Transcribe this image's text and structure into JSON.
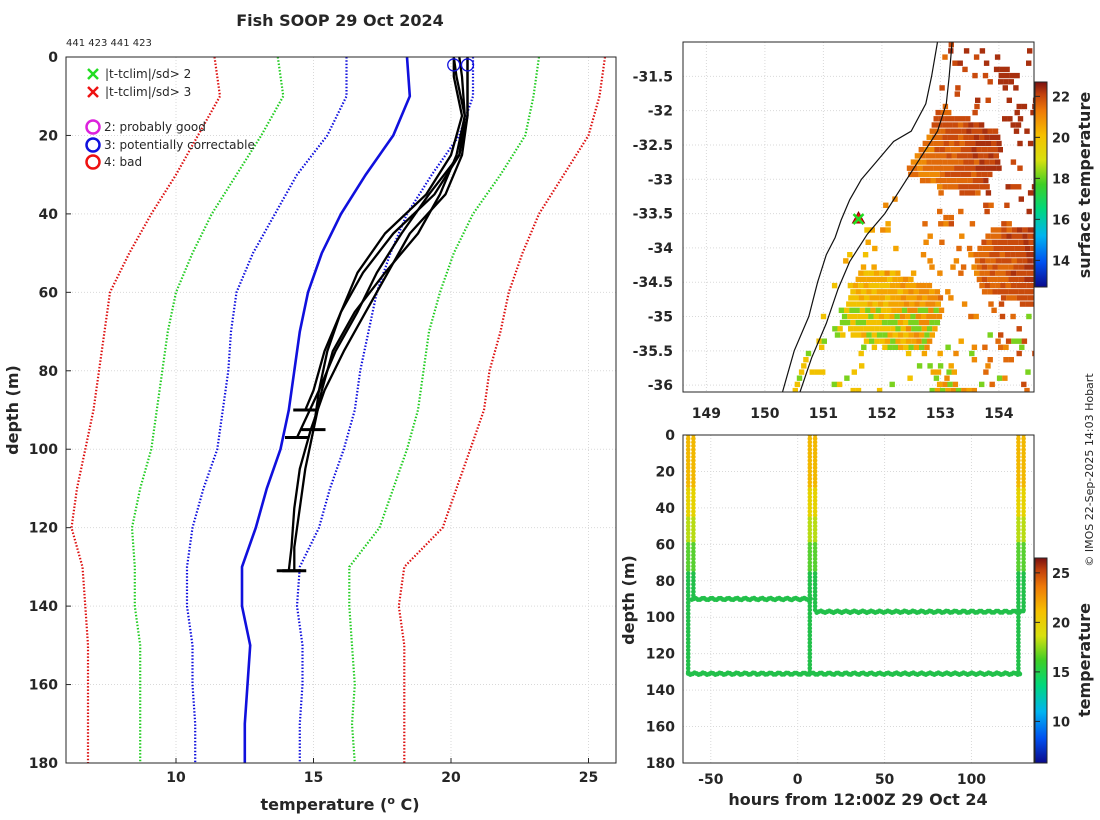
{
  "chart_data": [
    {
      "type": "line",
      "id": "profiles",
      "title": "Fish SOOP 29 Oct 2024",
      "subtitle": "441 423 441 423",
      "xlabel": "temperature (o C)",
      "xlabel_base": "temperature (",
      "xlabel_sup": "o",
      "xlabel_end": " C)",
      "ylabel": "depth (m)",
      "xlim": [
        6,
        26
      ],
      "ylim": [
        0,
        180
      ],
      "xticks": [
        10,
        15,
        20,
        25
      ],
      "yticks": [
        0,
        20,
        40,
        60,
        80,
        100,
        120,
        140,
        160,
        180
      ],
      "legend": [
        {
          "marker": "x",
          "color": "#22dd22",
          "label": "|t-tclim|/sd> 2"
        },
        {
          "marker": "x",
          "color": "#ee1111",
          "label": "|t-tclim|/sd> 3"
        },
        {
          "marker": "o",
          "color": "#dd22dd",
          "label": "2: probably good"
        },
        {
          "marker": "o",
          "color": "#1111dd",
          "label": "3: potentially correctable"
        },
        {
          "marker": "o",
          "color": "#ee1111",
          "label": "4: bad"
        }
      ],
      "climatology": [
        {
          "name": "clim",
          "style": "solid",
          "color": "#1010dd",
          "depth": [
            0,
            10,
            20,
            30,
            40,
            50,
            60,
            70,
            80,
            90,
            100,
            110,
            120,
            130,
            140,
            150,
            160,
            170,
            180
          ],
          "temp": [
            18.4,
            18.5,
            17.9,
            16.9,
            16.0,
            15.3,
            14.8,
            14.5,
            14.3,
            14.1,
            13.8,
            13.3,
            12.9,
            12.4,
            12.4,
            12.7,
            12.6,
            12.5,
            12.5
          ]
        },
        {
          "name": "clim-1sd",
          "style": "dotted",
          "color": "#1010dd",
          "depth": [
            0,
            10,
            20,
            30,
            40,
            50,
            60,
            70,
            80,
            90,
            100,
            110,
            120,
            130,
            140,
            150,
            160,
            170,
            180
          ],
          "temp": [
            16.2,
            16.2,
            15.5,
            14.4,
            13.6,
            12.8,
            12.2,
            12.0,
            11.9,
            11.7,
            11.5,
            11.0,
            10.6,
            10.4,
            10.4,
            10.6,
            10.6,
            10.7,
            10.7
          ]
        },
        {
          "name": "clim+1sd",
          "style": "dotted",
          "color": "#1010dd",
          "depth": [
            0,
            10,
            20,
            30,
            40,
            50,
            60,
            70,
            80,
            90,
            100,
            110,
            120,
            130,
            140,
            150,
            160,
            170,
            180
          ],
          "temp": [
            20.8,
            20.8,
            20.3,
            19.3,
            18.4,
            17.8,
            17.3,
            17.0,
            16.7,
            16.5,
            16.1,
            15.6,
            15.2,
            14.5,
            14.4,
            14.6,
            14.6,
            14.5,
            14.5
          ]
        },
        {
          "name": "clim-2sd",
          "style": "dotted",
          "color": "#22cc22",
          "depth": [
            0,
            10,
            20,
            30,
            40,
            50,
            60,
            70,
            80,
            90,
            100,
            110,
            120,
            130,
            140,
            150,
            160,
            170,
            180
          ],
          "temp": [
            13.7,
            13.9,
            13.1,
            12.2,
            11.3,
            10.6,
            10.0,
            9.7,
            9.5,
            9.3,
            9.1,
            8.7,
            8.4,
            8.5,
            8.5,
            8.7,
            8.7,
            8.7,
            8.7
          ]
        },
        {
          "name": "clim+2sd",
          "style": "dotted",
          "color": "#22cc22",
          "depth": [
            0,
            10,
            20,
            30,
            40,
            50,
            60,
            70,
            80,
            90,
            100,
            110,
            120,
            130,
            140,
            150,
            160,
            170,
            180
          ],
          "temp": [
            23.2,
            23.0,
            22.7,
            21.8,
            20.8,
            20.1,
            19.6,
            19.2,
            19.0,
            18.8,
            18.4,
            17.9,
            17.4,
            16.3,
            16.3,
            16.4,
            16.5,
            16.4,
            16.5
          ]
        },
        {
          "name": "clim-3sd",
          "style": "dotted",
          "color": "#dd1111",
          "depth": [
            0,
            10,
            20,
            30,
            40,
            50,
            60,
            70,
            80,
            90,
            100,
            110,
            120,
            130,
            140,
            150,
            160,
            170,
            180
          ],
          "temp": [
            11.4,
            11.6,
            10.8,
            10.0,
            9.1,
            8.3,
            7.6,
            7.4,
            7.2,
            7.0,
            6.7,
            6.4,
            6.2,
            6.6,
            6.7,
            6.8,
            6.8,
            6.8,
            6.8
          ]
        },
        {
          "name": "clim+3sd",
          "style": "dotted",
          "color": "#dd1111",
          "depth": [
            0,
            10,
            20,
            30,
            40,
            50,
            60,
            70,
            80,
            90,
            100,
            110,
            120,
            130,
            140,
            150,
            160,
            170,
            180
          ],
          "temp": [
            25.6,
            25.4,
            25.0,
            24.1,
            23.2,
            22.6,
            22.1,
            21.8,
            21.4,
            21.2,
            20.7,
            20.2,
            19.7,
            18.3,
            18.1,
            18.3,
            18.3,
            18.3,
            18.3
          ]
        }
      ],
      "profiles": [
        {
          "depth": [
            0,
            5,
            15,
            25,
            35,
            45,
            55,
            65,
            75,
            85,
            90
          ],
          "temp": [
            20.1,
            20.2,
            20.5,
            20.3,
            19.4,
            17.9,
            16.8,
            16.0,
            15.4,
            15.0,
            14.7
          ]
        },
        {
          "depth": [
            0,
            5,
            15,
            25,
            35,
            45,
            55,
            65,
            75,
            85,
            97
          ],
          "temp": [
            20.6,
            20.6,
            20.6,
            20.3,
            19.2,
            18.2,
            17.3,
            16.6,
            15.8,
            15.2,
            14.4
          ]
        },
        {
          "depth": [
            0,
            5,
            15,
            25,
            35,
            45,
            55,
            65,
            75,
            85,
            95,
            105,
            115,
            125,
            131
          ],
          "temp": [
            20.1,
            20.1,
            20.4,
            20.0,
            19.1,
            17.6,
            16.6,
            16.0,
            15.5,
            15.2,
            15.0,
            14.7,
            14.5,
            14.3,
            14.3
          ]
        },
        {
          "depth": [
            0,
            5,
            15,
            25,
            35,
            45,
            55,
            65,
            75,
            85,
            95,
            105,
            115,
            125,
            131
          ],
          "temp": [
            20.6,
            20.6,
            20.6,
            20.4,
            19.8,
            18.5,
            17.7,
            16.9,
            16.1,
            15.4,
            14.9,
            14.5,
            14.3,
            14.2,
            14.1
          ]
        },
        {
          "depth": [
            0,
            5,
            15,
            25,
            35,
            45,
            55,
            65,
            75,
            85,
            95
          ],
          "temp": [
            20.3,
            20.4,
            20.5,
            20.2,
            19.6,
            18.8,
            17.6,
            16.5,
            15.7,
            15.3,
            15.0
          ]
        }
      ],
      "flag_markers": [
        {
          "temp": 20.1,
          "depth": 1,
          "flag": "3"
        },
        {
          "temp": 20.6,
          "depth": 1,
          "flag": "3"
        }
      ]
    },
    {
      "type": "heatmap",
      "id": "map",
      "xlim": [
        148.6,
        154.6
      ],
      "ylim": [
        -36.1,
        -31.0
      ],
      "xticks": [
        149,
        150,
        151,
        152,
        153,
        154
      ],
      "yticks": [
        -31.5,
        -32,
        -32.5,
        -33,
        -33.5,
        -34,
        -34.5,
        -35,
        -35.5,
        -36
      ],
      "xtick_labels": [
        "149",
        "150",
        "151",
        "152",
        "153",
        "154"
      ],
      "ytick_labels": [
        "-31.5",
        "-32",
        "-32.5",
        "-33",
        "-33.5",
        "-34",
        "-34.5",
        "-35",
        "-35.5",
        "-36"
      ],
      "colorbar_label": "surface temperature",
      "clim": [
        12.7,
        22.7
      ],
      "colorbar_ticks": [
        14,
        16,
        18,
        20,
        22
      ],
      "station": {
        "lon": 151.6,
        "lat": -33.58
      },
      "coastline": [
        [
          150.3,
          -36.1
        ],
        [
          150.5,
          -35.5
        ],
        [
          150.75,
          -35.0
        ],
        [
          150.9,
          -34.5
        ],
        [
          151.05,
          -34.1
        ],
        [
          151.2,
          -33.85
        ],
        [
          151.3,
          -33.6
        ],
        [
          151.45,
          -33.3
        ],
        [
          151.65,
          -33.0
        ],
        [
          151.9,
          -32.75
        ],
        [
          152.2,
          -32.45
        ],
        [
          152.5,
          -32.3
        ],
        [
          152.75,
          -31.9
        ],
        [
          152.85,
          -31.5
        ],
        [
          152.95,
          -31.0
        ]
      ],
      "isobath": [
        [
          150.6,
          -36.1
        ],
        [
          150.8,
          -35.6
        ],
        [
          151.05,
          -35.1
        ],
        [
          151.25,
          -34.6
        ],
        [
          151.45,
          -34.2
        ],
        [
          151.75,
          -33.8
        ],
        [
          152.05,
          -33.5
        ],
        [
          152.35,
          -33.1
        ],
        [
          152.65,
          -32.7
        ],
        [
          152.95,
          -32.3
        ],
        [
          153.1,
          -31.9
        ],
        [
          153.15,
          -31.5
        ],
        [
          153.2,
          -31.0
        ]
      ]
    },
    {
      "type": "scatter",
      "id": "time-depth",
      "xlabel": "hours from 12:00Z 29 Oct 24",
      "ylabel": "depth (m)",
      "xlim": [
        -66,
        136
      ],
      "ylim": [
        0,
        180
      ],
      "xticks": [
        -50,
        0,
        50,
        100
      ],
      "xtick_labels": [
        "-50",
        "0",
        "50",
        "100"
      ],
      "yticks": [
        0,
        20,
        40,
        60,
        80,
        100,
        120,
        140,
        160,
        180
      ],
      "colorbar_label": "temperature",
      "clim": [
        5.8,
        26.5
      ],
      "colorbar_ticks": [
        10,
        15,
        20,
        25
      ],
      "casts": [
        {
          "hours": -63,
          "max_depth": 131
        },
        {
          "hours": -60,
          "max_depth": 90
        },
        {
          "hours": 7,
          "max_depth": 131
        },
        {
          "hours": 10,
          "max_depth": 97
        },
        {
          "hours": 127,
          "max_depth": 131
        },
        {
          "hours": 130,
          "max_depth": 97
        }
      ],
      "bottom_tracks": [
        {
          "from": -61,
          "to": 8,
          "depth": 90
        },
        {
          "from": 11,
          "to": 130,
          "depth": 97
        },
        {
          "from": -63,
          "to": 128,
          "depth": 131
        }
      ]
    }
  ],
  "credit": "© IMOS 22-Sep-2025 14:03 Hobart"
}
